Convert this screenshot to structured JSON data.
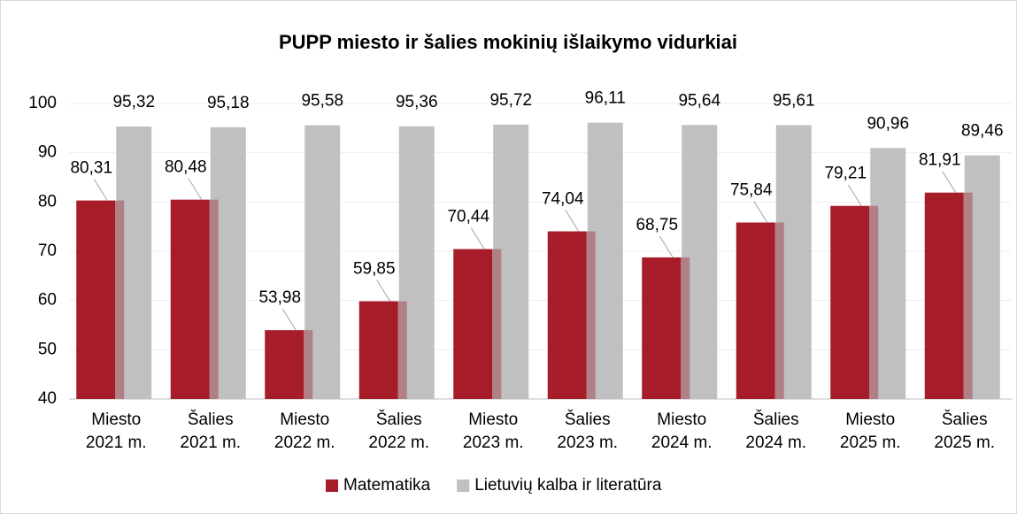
{
  "chart_data": {
    "type": "bar",
    "title": "PUPP miesto ir šalies mokinių išlaikymo vidurkiai",
    "categories": [
      "Miesto 2021 m.",
      "Šalies 2021 m.",
      "Miesto 2022 m.",
      "Šalies 2022 m.",
      "Miesto 2023 m.",
      "Šalies 2023 m.",
      "Miesto 2024 m.",
      "Šalies 2024 m.",
      "Miesto 2025 m.",
      "Šalies 2025 m."
    ],
    "series": [
      {
        "name": "Matematika",
        "color": "#a61c28",
        "values": [
          80.31,
          80.48,
          53.98,
          59.85,
          70.44,
          74.04,
          68.75,
          75.84,
          79.21,
          81.91
        ],
        "value_labels": [
          "80,31",
          "80,48",
          "53,98",
          "59,85",
          "70,44",
          "74,04",
          "68,75",
          "75,84",
          "79,21",
          "81,91"
        ]
      },
      {
        "name": "Lietuvių kalba ir literatūra",
        "color": "#c0c0c0",
        "values": [
          95.32,
          95.18,
          95.58,
          95.36,
          95.72,
          96.11,
          95.64,
          95.61,
          90.96,
          89.46
        ],
        "value_labels": [
          "95,32",
          "95,18",
          "95,58",
          "95,36",
          "95,72",
          "96,11",
          "95,64",
          "95,61",
          "90,96",
          "89,46"
        ]
      }
    ],
    "ylim": [
      40,
      100
    ],
    "yticks": [
      40,
      50,
      60,
      70,
      80,
      90,
      100
    ],
    "grid": true,
    "legend": "bottom"
  }
}
